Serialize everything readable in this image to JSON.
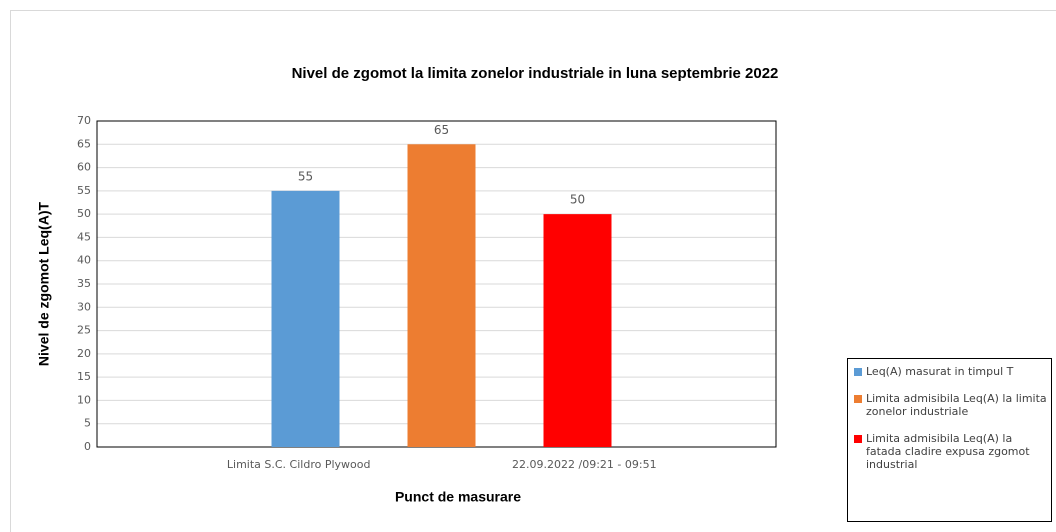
{
  "chart_data": {
    "type": "bar",
    "title": "Nivel de zgomot la limita zonelor industriale in luna septembrie 2022",
    "y_label": "Nivel de zgomot Leq(A)T",
    "x_label": "Punct de masurare",
    "category_labels": [
      "Limita S.C. Cildro Plywood",
      "22.09.2022 /09:21 - 09:51"
    ],
    "series": [
      {
        "name": "Leq(A) masurat in timpul T",
        "color": "#5b9bd5",
        "values": [
          55
        ]
      },
      {
        "name": "Limita admisibila Leq(A) la limita zonelor industriale",
        "color": "#ed7d31",
        "values": [
          65
        ]
      },
      {
        "name": "Limita admisibila Leq(A) la fatada cladire expusa zgomot industrial",
        "color": "#ff0000",
        "values": [
          50
        ]
      }
    ],
    "ylim": [
      0,
      70
    ],
    "yticks": [
      0,
      5,
      10,
      15,
      20,
      25,
      30,
      35,
      40,
      45,
      50,
      55,
      60,
      65,
      70
    ],
    "grid": true,
    "legend": "bottom-right"
  }
}
